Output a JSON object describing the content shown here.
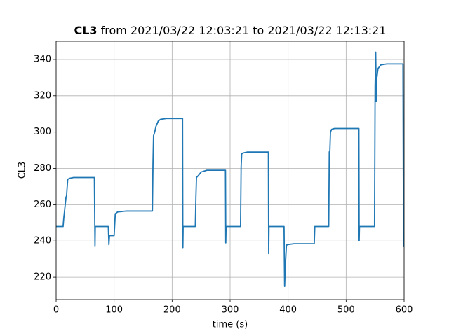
{
  "chart_data": {
    "type": "line",
    "title": {
      "bold": "CL3",
      "rest": "from 2021/03/22 12:03:21 to 2021/03/22 12:13:21"
    },
    "xlabel": "time (s)",
    "ylabel": "CL3",
    "xlim": [
      0,
      600
    ],
    "ylim": [
      207.7,
      350
    ],
    "xticks": [
      0,
      100,
      200,
      300,
      400,
      500,
      600
    ],
    "yticks": [
      220,
      240,
      260,
      280,
      300,
      320,
      340
    ],
    "grid": true,
    "series": [
      {
        "name": "CL3",
        "color": "#1f77b4",
        "x": [
          0,
          12,
          13,
          17,
          18,
          20,
          23,
          30,
          66,
          67,
          67.5,
          90,
          91,
          92,
          93,
          100,
          101,
          102,
          106,
          120,
          166,
          167,
          168,
          170,
          172,
          176,
          180,
          190,
          218,
          218.5,
          219,
          240,
          241,
          242,
          245,
          250,
          260,
          292,
          292.5,
          293,
          318,
          319,
          320,
          322,
          330,
          366,
          366.5,
          367,
          393,
          394,
          395,
          397,
          398,
          410,
          445,
          446,
          470,
          471,
          472,
          473,
          475,
          480,
          522,
          522.5,
          523,
          549,
          550,
          551,
          552,
          553,
          555,
          560,
          570,
          598,
          599,
          600
        ],
        "values": [
          248,
          248,
          252,
          264,
          265,
          274,
          274.5,
          275,
          275,
          237,
          248,
          248,
          238,
          243,
          243,
          243,
          249,
          255,
          256,
          256.5,
          256.5,
          282,
          298,
          300,
          303,
          306,
          307,
          307.5,
          307.5,
          236,
          248,
          248,
          264,
          275,
          276,
          278,
          279,
          279,
          239,
          248,
          248,
          281,
          288,
          288.5,
          289,
          289,
          233,
          248,
          248,
          215,
          225,
          237,
          238,
          238.5,
          238.5,
          248,
          248,
          289,
          290,
          300,
          301.5,
          302,
          302,
          240,
          248,
          248,
          325,
          344,
          317,
          330,
          335,
          337,
          337.5,
          337.5,
          237,
          237
        ]
      }
    ]
  }
}
